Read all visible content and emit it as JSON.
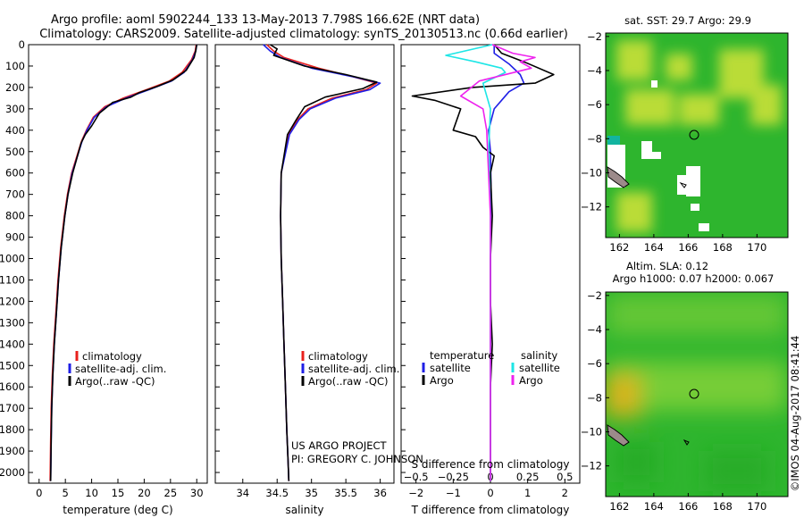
{
  "title": {
    "line1": "Argo profile: aoml 5902244_133 13-May-2013 7.798S 166.62E (NRT data)",
    "line2": "Climatology: CARS2009. Satellite-adjusted climatology: synTS_20130513.nc (0.66d earlier)"
  },
  "credits": {
    "project": "US ARGO PROJECT",
    "pi": "PI: GREGORY C. JOHNSON",
    "copyright": "©IMOS 04-Aug-2017 08:41:44"
  },
  "legend": {
    "climatology": "climatology",
    "satellite_clim": "satellite-adj. clim.",
    "argo": "Argo(..raw -QC)",
    "temperature_header": "temperature",
    "salinity_header": "salinity",
    "satellite": "satellite",
    "argo_short": "Argo"
  },
  "colors": {
    "climatology": "#e8201c",
    "satellite": "#1f1fe6",
    "argo": "#000000",
    "salinity_satellite": "#1ee6e6",
    "salinity_argo": "#ee22ee",
    "map_green": "#2eb52e",
    "map_yellow": "#e9e93a",
    "map_teal": "#12b4a0"
  },
  "chart_data": [
    {
      "type": "line",
      "xlabel": "temperature (deg C)",
      "ylabel": "",
      "xlim": [
        -2,
        32
      ],
      "ylim": [
        2050,
        0
      ],
      "xticks": [
        0,
        5,
        10,
        15,
        20,
        25,
        30
      ],
      "yticks": [
        0,
        100,
        200,
        300,
        400,
        500,
        600,
        700,
        800,
        900,
        1000,
        1100,
        1200,
        1300,
        1400,
        1500,
        1600,
        1700,
        1800,
        1900,
        2000
      ],
      "series": [
        {
          "name": "climatology",
          "color": "#e8201c",
          "x": [
            29.9,
            29.7,
            29.0,
            27.2,
            24.8,
            20.5,
            16.0,
            12.5,
            10.3,
            9.0,
            8.1,
            6.2,
            5.4,
            4.8,
            4.1,
            3.6,
            3.2,
            2.8,
            2.5,
            2.3,
            2.2,
            2.1
          ],
          "y": [
            0,
            30,
            70,
            130,
            170,
            210,
            250,
            290,
            340,
            400,
            450,
            600,
            700,
            800,
            950,
            1100,
            1250,
            1400,
            1550,
            1700,
            1850,
            2040
          ]
        },
        {
          "name": "satellite-adj. clim.",
          "color": "#1f1fe6",
          "x": [
            30.0,
            29.8,
            29.2,
            27.6,
            25.2,
            21.0,
            16.5,
            12.8,
            10.5,
            9.1,
            8.2,
            6.3,
            5.5,
            4.9,
            4.2,
            3.7,
            3.3,
            2.9,
            2.6,
            2.4,
            2.3,
            2.2
          ],
          "y": [
            0,
            30,
            70,
            130,
            170,
            210,
            250,
            290,
            340,
            400,
            450,
            600,
            700,
            800,
            950,
            1100,
            1250,
            1400,
            1550,
            1700,
            1850,
            2040
          ]
        },
        {
          "name": "Argo(..raw -QC)",
          "color": "#000000",
          "x": [
            30.0,
            29.8,
            29.5,
            28.0,
            25.5,
            22.5,
            19.0,
            17.5,
            14.0,
            11.5,
            10.0,
            8.8,
            8.0,
            6.4,
            5.5,
            4.9,
            4.2,
            3.7,
            3.3,
            2.9,
            2.6,
            2.4,
            2.3,
            2.2
          ],
          "y": [
            0,
            30,
            60,
            120,
            165,
            195,
            225,
            245,
            270,
            320,
            380,
            420,
            460,
            600,
            700,
            800,
            950,
            1100,
            1250,
            1400,
            1550,
            1700,
            1850,
            2040
          ]
        }
      ]
    },
    {
      "type": "line",
      "xlabel": "salinity",
      "ylabel": "",
      "xlim": [
        33.6,
        36.2
      ],
      "ylim": [
        2050,
        0
      ],
      "xticks": [
        34,
        34.5,
        35,
        35.5,
        36
      ],
      "series": [
        {
          "name": "climatology",
          "color": "#e8201c",
          "x": [
            34.35,
            34.45,
            34.6,
            35.1,
            35.6,
            35.95,
            35.8,
            35.3,
            34.95,
            34.8,
            34.67,
            34.56,
            34.55,
            34.56,
            34.58,
            34.6,
            34.62,
            34.64,
            34.66,
            34.67
          ],
          "y": [
            0,
            30,
            60,
            110,
            150,
            180,
            210,
            250,
            300,
            350,
            420,
            600,
            800,
            1000,
            1200,
            1400,
            1600,
            1800,
            1950,
            2040
          ]
        },
        {
          "name": "satellite-adj. clim.",
          "color": "#1f1fe6",
          "x": [
            34.3,
            34.4,
            34.55,
            35.0,
            35.6,
            36.0,
            35.85,
            35.35,
            34.98,
            34.82,
            34.68,
            34.56,
            34.55,
            34.56,
            34.58,
            34.6,
            34.62,
            34.64,
            34.66,
            34.67
          ],
          "y": [
            0,
            30,
            60,
            110,
            150,
            180,
            210,
            250,
            300,
            350,
            420,
            600,
            800,
            1000,
            1200,
            1400,
            1600,
            1800,
            1950,
            2040
          ]
        },
        {
          "name": "Argo(..raw -QC)",
          "color": "#000000",
          "x": [
            34.4,
            34.5,
            34.45,
            34.9,
            35.5,
            35.95,
            35.75,
            35.2,
            34.9,
            34.78,
            34.65,
            34.56,
            34.55,
            34.56,
            34.58,
            34.6,
            34.62,
            34.64,
            34.66,
            34.67
          ],
          "y": [
            0,
            20,
            50,
            100,
            140,
            175,
            205,
            245,
            290,
            350,
            420,
            600,
            800,
            1000,
            1200,
            1400,
            1600,
            1800,
            1950,
            2040
          ]
        }
      ]
    },
    {
      "type": "line",
      "xlabel": "T difference from climatology",
      "xlabel_top": "S difference from climatology",
      "ylabel": "",
      "xlim": [
        -2.4,
        2.4
      ],
      "ylim": [
        2050,
        0
      ],
      "xticks": [
        -2,
        -1,
        0,
        1,
        2
      ],
      "xticks_top": [
        -0.5,
        -0.25,
        0,
        0.25,
        0.5
      ],
      "series": [
        {
          "name": "temperature satellite",
          "color": "#1f1fe6",
          "x": [
            0.1,
            0.1,
            0.5,
            0.8,
            0.9,
            0.5,
            0.3,
            0.1,
            -0.05,
            0.0,
            0.02,
            0.0,
            0.0,
            0.0,
            0.0
          ],
          "y": [
            0,
            40,
            90,
            140,
            180,
            220,
            260,
            300,
            400,
            500,
            700,
            1000,
            1400,
            1800,
            2040
          ]
        },
        {
          "name": "temperature Argo",
          "color": "#000000",
          "x": [
            0.1,
            0.3,
            0.9,
            1.7,
            1.2,
            -0.5,
            -2.1,
            -1.5,
            -0.8,
            -1.0,
            -0.4,
            -0.2,
            0.1,
            0.0,
            0.05,
            0.0,
            0.0,
            0.05,
            0.0,
            0.0,
            0.0
          ],
          "y": [
            0,
            40,
            80,
            140,
            180,
            200,
            240,
            260,
            300,
            400,
            430,
            480,
            520,
            600,
            800,
            1000,
            1200,
            1400,
            1600,
            1800,
            2040
          ]
        },
        {
          "name": "salinity satellite",
          "color": "#1ee6e6",
          "x": [
            0.05,
            -1.2,
            -0.4,
            0.3,
            0.4,
            -0.2,
            0.0,
            -0.05,
            0.0,
            0.0,
            0.0,
            0.0
          ],
          "y": [
            0,
            50,
            80,
            110,
            130,
            180,
            300,
            500,
            800,
            1200,
            1600,
            2040
          ]
        },
        {
          "name": "salinity Argo",
          "color": "#ee22ee",
          "x": [
            0.05,
            0.6,
            1.2,
            0.8,
            1.1,
            -0.3,
            -0.8,
            -0.2,
            -0.1,
            0.0,
            0.0,
            0.0
          ],
          "y": [
            0,
            40,
            60,
            80,
            110,
            170,
            240,
            300,
            400,
            800,
            1400,
            2040
          ]
        }
      ]
    },
    {
      "type": "heatmap",
      "title": "sat. SST: 29.7  Argo: 29.9",
      "xlim": [
        161.2,
        171.8
      ],
      "ylim": [
        -13.8,
        -1.8
      ],
      "xticks": [
        162,
        164,
        166,
        168,
        170
      ],
      "yticks": [
        -2,
        -4,
        -6,
        -8,
        -10,
        -12
      ],
      "marker": {
        "lon": 166.62,
        "lat": -7.798
      }
    },
    {
      "type": "heatmap",
      "title": "Altim. SLA: 0.12",
      "subtitle": "Argo h1000: 0.07 h2000: 0.067",
      "xlim": [
        161.2,
        171.8
      ],
      "ylim": [
        -13.8,
        -1.8
      ],
      "xticks": [
        162,
        164,
        166,
        168,
        170
      ],
      "yticks": [
        -2,
        -4,
        -6,
        -8,
        -10,
        -12
      ],
      "marker": {
        "lon": 166.62,
        "lat": -7.798
      }
    }
  ]
}
